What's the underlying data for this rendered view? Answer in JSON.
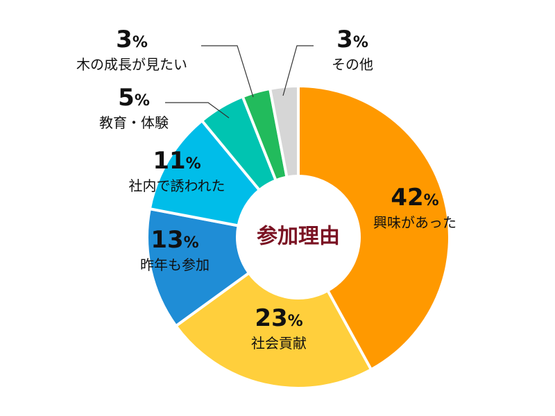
{
  "chart_data": {
    "type": "pie",
    "center_label": "参加理由",
    "percent_sign": "%",
    "slices": [
      {
        "label": "興味があった",
        "value": 42,
        "color": "#ff9900"
      },
      {
        "label": "社会貢献",
        "value": 23,
        "color": "#ffcf3c"
      },
      {
        "label": "昨年も参加",
        "value": 13,
        "color": "#1f8dd6"
      },
      {
        "label": "社内で誘われた",
        "value": 11,
        "color": "#00bde9"
      },
      {
        "label": "教育・体験",
        "value": 5,
        "color": "#00c4b1"
      },
      {
        "label": "木の成長が見たい",
        "value": 3,
        "color": "#22bb5c"
      },
      {
        "label": "その他",
        "value": 3,
        "color": "#d6d6d6"
      }
    ]
  }
}
